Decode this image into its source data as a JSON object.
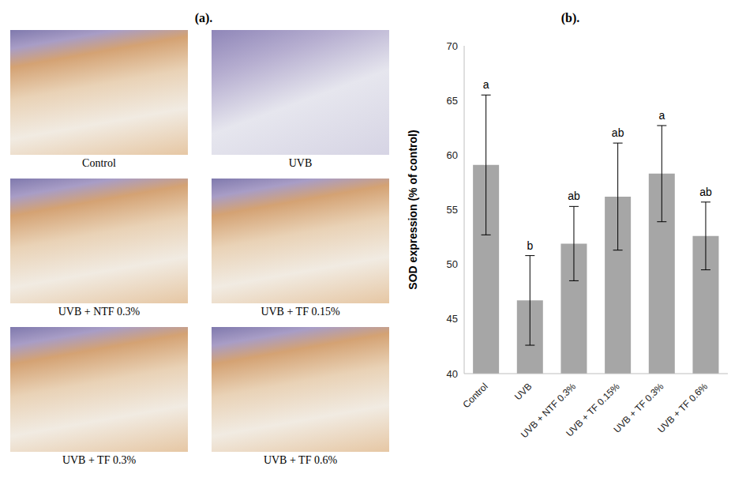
{
  "panel_a": {
    "title": "(a).",
    "captions": [
      "Control",
      "UVB",
      "UVB + NTF 0.3%",
      "UVB + TF 0.15%",
      "UVB + TF 0.3%",
      "UVB + TF 0.6%"
    ]
  },
  "chart_data": {
    "type": "bar",
    "title": "(b).",
    "y_label": "SOD expression (% of control)",
    "categories": [
      "Control",
      "UVB",
      "UVB + NTF 0.3%",
      "UVB + TF 0.15%",
      "UVB + TF 0.3%",
      "UVB + TF 0.6%"
    ],
    "values": [
      59.1,
      46.7,
      51.9,
      56.2,
      58.3,
      52.6
    ],
    "error": [
      6.4,
      4.1,
      3.4,
      4.9,
      4.4,
      3.1
    ],
    "significance_letters": [
      "a",
      "b",
      "ab",
      "ab",
      "a",
      "ab"
    ],
    "color": "#a6a6a6",
    "ylim": [
      40,
      70
    ],
    "yticks": [
      40,
      45,
      50,
      55,
      60,
      65,
      70
    ],
    "grid": false
  }
}
